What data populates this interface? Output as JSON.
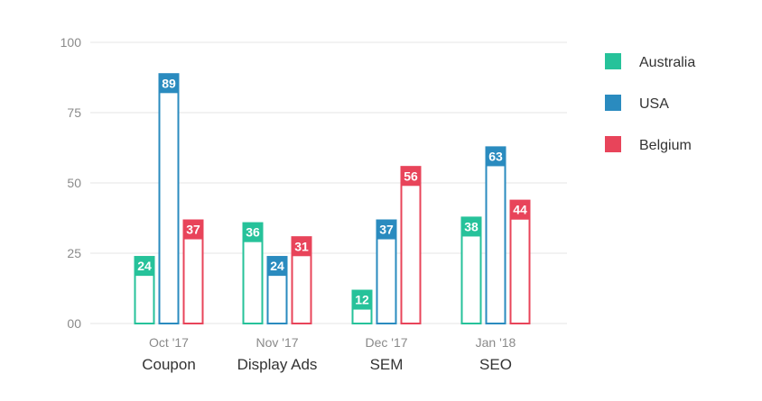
{
  "chart_data": {
    "type": "bar",
    "categories": [
      "Coupon",
      "Display Ads",
      "SEM",
      "SEO"
    ],
    "dates": [
      "Oct '17",
      "Nov '17",
      "Dec '17",
      "Jan '18"
    ],
    "series": [
      {
        "name": "Australia",
        "color": "#26c29a",
        "values": [
          24,
          36,
          12,
          38
        ]
      },
      {
        "name": "USA",
        "color": "#2a8bbf",
        "values": [
          89,
          24,
          37,
          63
        ]
      },
      {
        "name": "Belgium",
        "color": "#e8445a",
        "values": [
          37,
          31,
          56,
          44
        ]
      }
    ],
    "yticks": [
      "00",
      "25",
      "50",
      "75",
      "100"
    ],
    "ylim": [
      0,
      100
    ],
    "grid": true,
    "legend_position": "right"
  }
}
